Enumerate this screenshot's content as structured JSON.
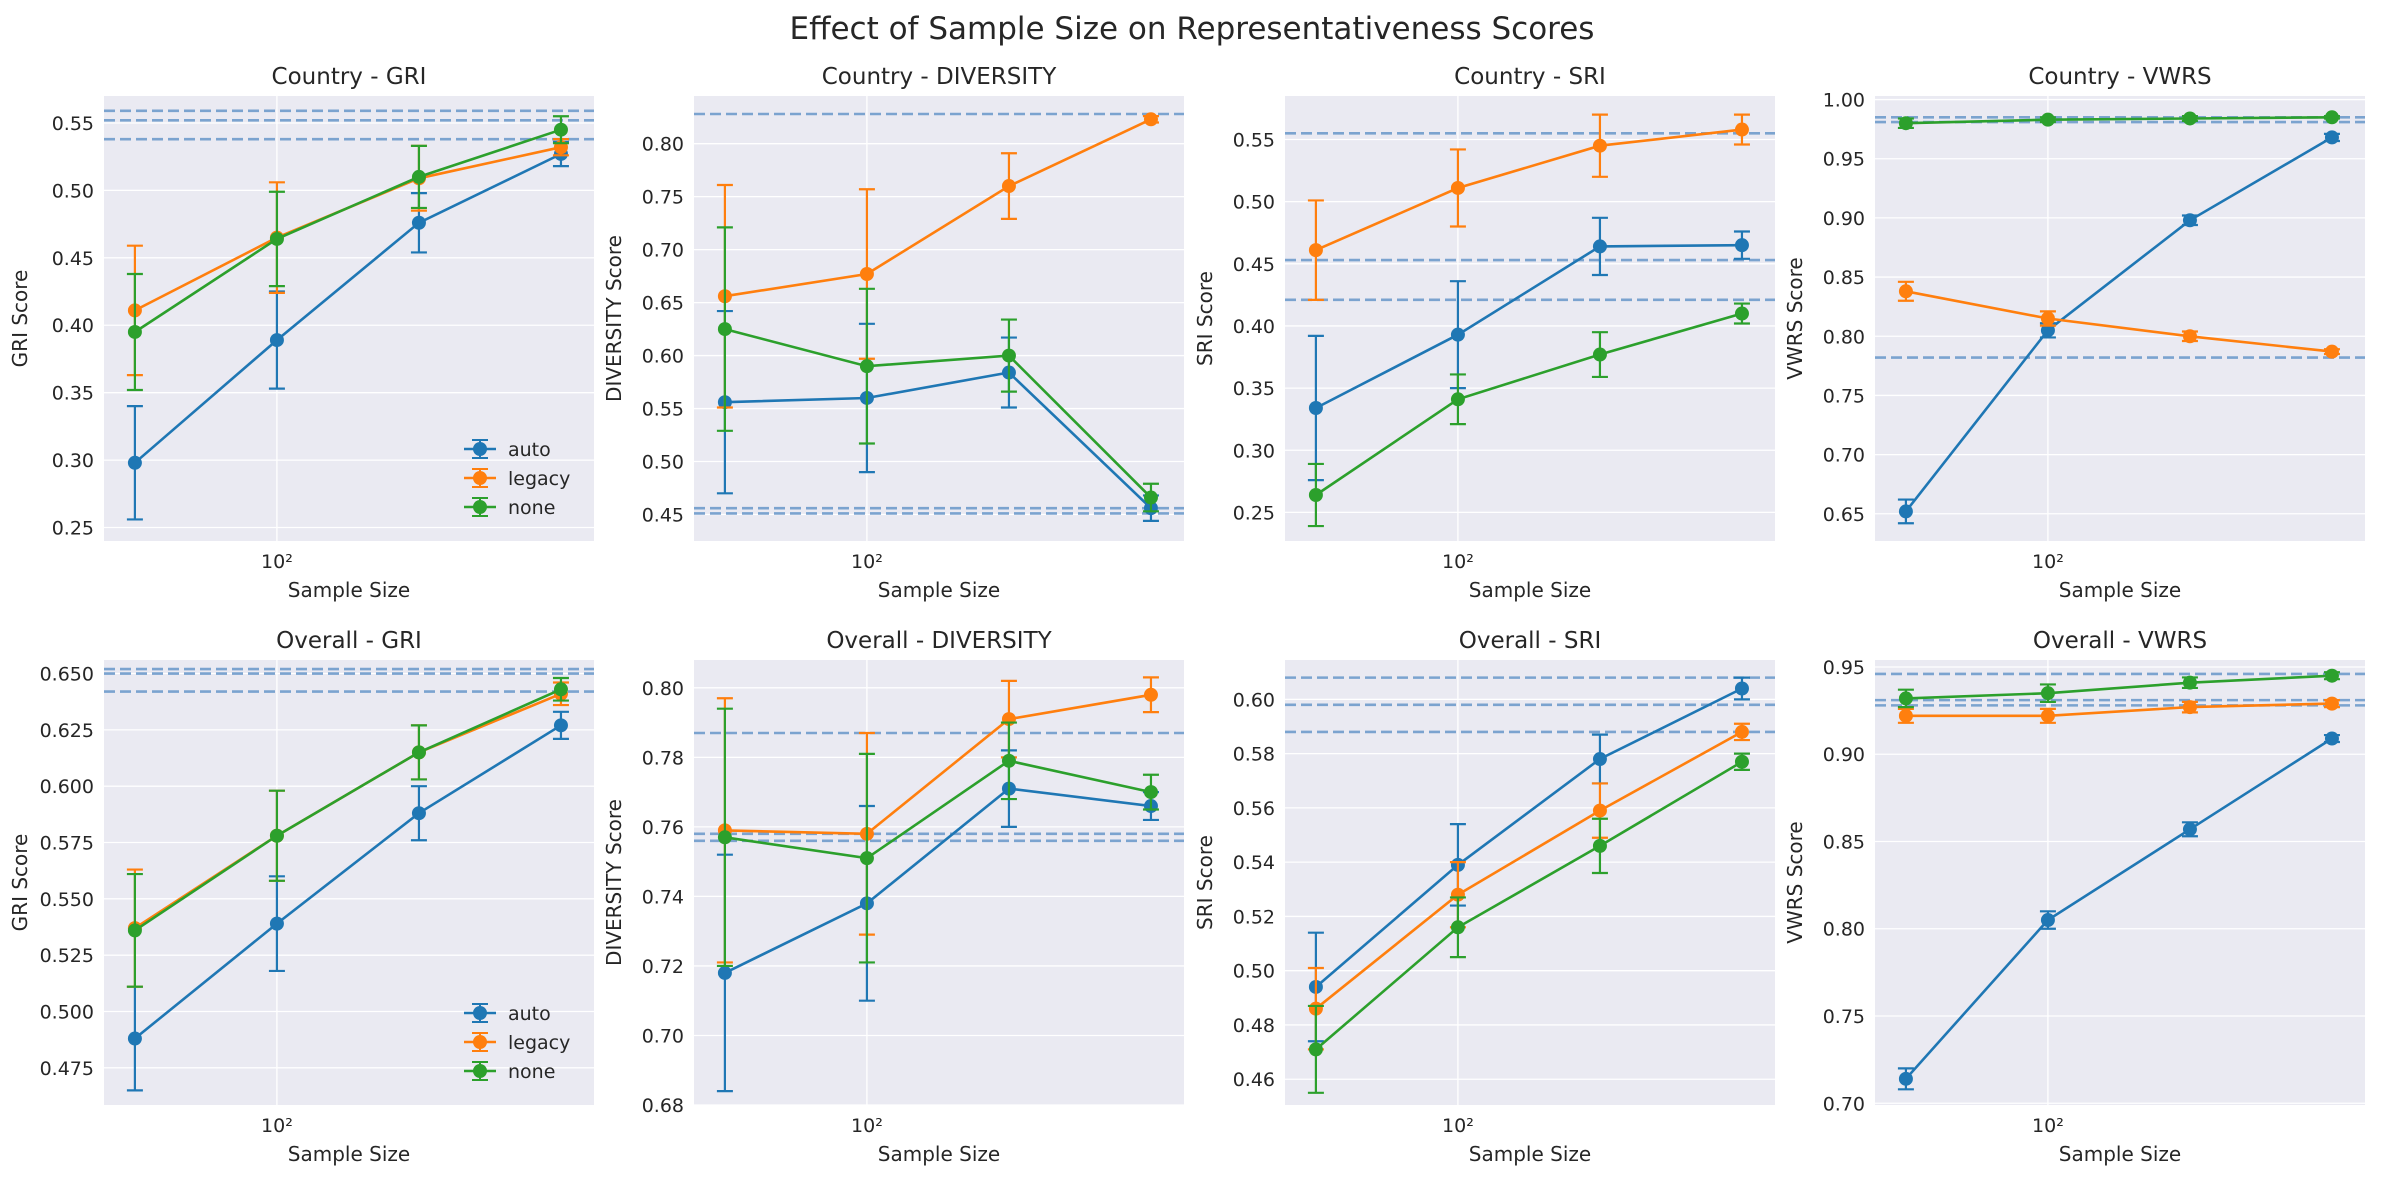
{
  "title": "Effect of Sample Size on Representativeness Scores",
  "colors": {
    "auto": "#1f77b4",
    "legacy": "#ff7f0e",
    "none": "#2ca02c",
    "refline": "#7ba3cf",
    "axes_bg": "#eaeaf2",
    "grid": "#ffffff"
  },
  "chart_data": [
    {
      "type": "line",
      "title": "Country - GRI",
      "xlabel": "Sample Size",
      "ylabel": "GRI Score",
      "x": [
        50,
        100,
        200,
        400
      ],
      "xscale": "log",
      "xlim": [
        43,
        470
      ],
      "xticks": [
        100
      ],
      "xtick_labels": [
        "10²"
      ],
      "ylim": [
        0.24,
        0.57
      ],
      "yticks": [
        0.25,
        0.3,
        0.35,
        0.4,
        0.45,
        0.5,
        0.55
      ],
      "ytick_labels": [
        "0.25",
        "0.30",
        "0.35",
        "0.40",
        "0.45",
        "0.50",
        "0.55"
      ],
      "reference_lines": [
        0.559,
        0.552,
        0.538
      ],
      "legend": {
        "location": "lower-right",
        "entries": [
          "auto",
          "legacy",
          "none"
        ]
      },
      "series": [
        {
          "name": "auto",
          "values": [
            0.298,
            0.389,
            0.476,
            0.527
          ],
          "yerr": [
            0.042,
            0.036,
            0.022,
            0.009
          ]
        },
        {
          "name": "legacy",
          "values": [
            0.411,
            0.465,
            0.509,
            0.532
          ],
          "yerr": [
            0.048,
            0.041,
            0.024,
            0.006
          ]
        },
        {
          "name": "none",
          "values": [
            0.395,
            0.464,
            0.51,
            0.545
          ],
          "yerr": [
            0.043,
            0.035,
            0.023,
            0.01
          ]
        }
      ]
    },
    {
      "type": "line",
      "title": "Country - DIVERSITY",
      "xlabel": "Sample Size",
      "ylabel": "DIVERSITY Score",
      "x": [
        50,
        100,
        200,
        400
      ],
      "xscale": "log",
      "xlim": [
        43,
        470
      ],
      "xticks": [
        100
      ],
      "xtick_labels": [
        "10²"
      ],
      "ylim": [
        0.425,
        0.845
      ],
      "yticks": [
        0.45,
        0.5,
        0.55,
        0.6,
        0.65,
        0.7,
        0.75,
        0.8
      ],
      "ytick_labels": [
        "0.45",
        "0.50",
        "0.55",
        "0.60",
        "0.65",
        "0.70",
        "0.75",
        "0.80"
      ],
      "reference_lines": [
        0.828,
        0.456,
        0.451
      ],
      "series": [
        {
          "name": "auto",
          "values": [
            0.556,
            0.56,
            0.584,
            0.456
          ],
          "yerr": [
            0.086,
            0.07,
            0.033,
            0.012
          ]
        },
        {
          "name": "legacy",
          "values": [
            0.656,
            0.677,
            0.76,
            0.823
          ],
          "yerr": [
            0.105,
            0.08,
            0.031,
            0.003
          ]
        },
        {
          "name": "none",
          "values": [
            0.625,
            0.59,
            0.6,
            0.466
          ],
          "yerr": [
            0.096,
            0.073,
            0.034,
            0.013
          ]
        }
      ]
    },
    {
      "type": "line",
      "title": "Country - SRI",
      "xlabel": "Sample Size",
      "ylabel": "SRI Score",
      "x": [
        50,
        100,
        200,
        400
      ],
      "xscale": "log",
      "xlim": [
        43,
        470
      ],
      "xticks": [
        100
      ],
      "xtick_labels": [
        "10²"
      ],
      "ylim": [
        0.227,
        0.585
      ],
      "yticks": [
        0.25,
        0.3,
        0.35,
        0.4,
        0.45,
        0.5,
        0.55
      ],
      "ytick_labels": [
        "0.25",
        "0.30",
        "0.35",
        "0.40",
        "0.45",
        "0.50",
        "0.55"
      ],
      "reference_lines": [
        0.555,
        0.453,
        0.421
      ],
      "series": [
        {
          "name": "auto",
          "values": [
            0.334,
            0.393,
            0.464,
            0.465
          ],
          "yerr": [
            0.058,
            0.043,
            0.023,
            0.011
          ]
        },
        {
          "name": "legacy",
          "values": [
            0.461,
            0.511,
            0.545,
            0.558
          ],
          "yerr": [
            0.04,
            0.031,
            0.025,
            0.012
          ]
        },
        {
          "name": "none",
          "values": [
            0.264,
            0.341,
            0.377,
            0.41
          ],
          "yerr": [
            0.025,
            0.02,
            0.018,
            0.008
          ]
        }
      ]
    },
    {
      "type": "line",
      "title": "Country - VWRS",
      "xlabel": "Sample Size",
      "ylabel": "VWRS Score",
      "x": [
        50,
        100,
        200,
        400
      ],
      "xscale": "log",
      "xlim": [
        43,
        470
      ],
      "xticks": [
        100
      ],
      "xtick_labels": [
        "10²"
      ],
      "ylim": [
        0.627,
        1.003
      ],
      "yticks": [
        0.65,
        0.7,
        0.75,
        0.8,
        0.85,
        0.9,
        0.95,
        1.0
      ],
      "ytick_labels": [
        "0.65",
        "0.70",
        "0.75",
        "0.80",
        "0.85",
        "0.90",
        "0.95",
        "1.00"
      ],
      "reference_lines": [
        0.985,
        0.981,
        0.782
      ],
      "series": [
        {
          "name": "auto",
          "values": [
            0.652,
            0.805,
            0.898,
            0.968
          ],
          "yerr": [
            0.01,
            0.006,
            0.004,
            0.003
          ]
        },
        {
          "name": "legacy",
          "values": [
            0.838,
            0.815,
            0.8,
            0.787
          ],
          "yerr": [
            0.008,
            0.006,
            0.004,
            0.002
          ]
        },
        {
          "name": "none",
          "values": [
            0.98,
            0.983,
            0.984,
            0.985
          ],
          "yerr": [
            0.004,
            0.002,
            0.002,
            0.001
          ]
        }
      ]
    },
    {
      "type": "line",
      "title": "Overall - GRI",
      "xlabel": "Sample Size",
      "ylabel": "GRI Score",
      "x": [
        50,
        100,
        200,
        400
      ],
      "xscale": "log",
      "xlim": [
        43,
        470
      ],
      "xticks": [
        100
      ],
      "xtick_labels": [
        "10²"
      ],
      "ylim": [
        0.4585,
        0.656
      ],
      "yticks": [
        0.475,
        0.5,
        0.525,
        0.55,
        0.575,
        0.6,
        0.625,
        0.65
      ],
      "ytick_labels": [
        "0.475",
        "0.500",
        "0.525",
        "0.550",
        "0.575",
        "0.600",
        "0.625",
        "0.650"
      ],
      "reference_lines": [
        0.652,
        0.65,
        0.642
      ],
      "legend": {
        "location": "lower-right",
        "entries": [
          "auto",
          "legacy",
          "none"
        ]
      },
      "series": [
        {
          "name": "auto",
          "values": [
            0.488,
            0.539,
            0.588,
            0.627
          ],
          "yerr": [
            0.023,
            0.021,
            0.012,
            0.006
          ]
        },
        {
          "name": "legacy",
          "values": [
            0.537,
            0.578,
            0.615,
            0.641
          ],
          "yerr": [
            0.026,
            0.02,
            0.012,
            0.005
          ]
        },
        {
          "name": "none",
          "values": [
            0.536,
            0.578,
            0.615,
            0.643
          ],
          "yerr": [
            0.025,
            0.02,
            0.012,
            0.005
          ]
        }
      ]
    },
    {
      "type": "line",
      "title": "Overall - DIVERSITY",
      "xlabel": "Sample Size",
      "ylabel": "DIVERSITY Score",
      "x": [
        50,
        100,
        200,
        400
      ],
      "xscale": "log",
      "xlim": [
        43,
        470
      ],
      "xticks": [
        100
      ],
      "xtick_labels": [
        "10²"
      ],
      "ylim": [
        0.68,
        0.808
      ],
      "yticks": [
        0.68,
        0.7,
        0.72,
        0.74,
        0.76,
        0.78,
        0.8
      ],
      "ytick_labels": [
        "0.68",
        "0.70",
        "0.72",
        "0.74",
        "0.76",
        "0.78",
        "0.80"
      ],
      "reference_lines": [
        0.787,
        0.758,
        0.756
      ],
      "series": [
        {
          "name": "auto",
          "values": [
            0.718,
            0.738,
            0.771,
            0.766
          ],
          "yerr": [
            0.034,
            0.028,
            0.011,
            0.004
          ]
        },
        {
          "name": "legacy",
          "values": [
            0.759,
            0.758,
            0.791,
            0.798
          ],
          "yerr": [
            0.038,
            0.029,
            0.011,
            0.005
          ]
        },
        {
          "name": "none",
          "values": [
            0.757,
            0.751,
            0.779,
            0.77
          ],
          "yerr": [
            0.037,
            0.03,
            0.011,
            0.005
          ]
        }
      ]
    },
    {
      "type": "line",
      "title": "Overall - SRI",
      "xlabel": "Sample Size",
      "ylabel": "SRI Score",
      "x": [
        50,
        100,
        200,
        400
      ],
      "xscale": "log",
      "xlim": [
        43,
        470
      ],
      "xticks": [
        100
      ],
      "xtick_labels": [
        "10²"
      ],
      "ylim": [
        0.4505,
        0.6145
      ],
      "yticks": [
        0.46,
        0.48,
        0.5,
        0.52,
        0.54,
        0.56,
        0.58,
        0.6
      ],
      "ytick_labels": [
        "0.46",
        "0.48",
        "0.50",
        "0.52",
        "0.54",
        "0.56",
        "0.58",
        "0.60"
      ],
      "reference_lines": [
        0.608,
        0.598,
        0.588
      ],
      "series": [
        {
          "name": "auto",
          "values": [
            0.494,
            0.539,
            0.578,
            0.604
          ],
          "yerr": [
            0.02,
            0.015,
            0.009,
            0.004
          ]
        },
        {
          "name": "legacy",
          "values": [
            0.486,
            0.528,
            0.559,
            0.588
          ],
          "yerr": [
            0.015,
            0.012,
            0.01,
            0.003
          ]
        },
        {
          "name": "none",
          "values": [
            0.471,
            0.516,
            0.546,
            0.577
          ],
          "yerr": [
            0.016,
            0.011,
            0.01,
            0.003
          ]
        }
      ]
    },
    {
      "type": "line",
      "title": "Overall - VWRS",
      "xlabel": "Sample Size",
      "ylabel": "VWRS Score",
      "x": [
        50,
        100,
        200,
        400
      ],
      "xscale": "log",
      "xlim": [
        43,
        470
      ],
      "xticks": [
        100
      ],
      "xtick_labels": [
        "10²"
      ],
      "ylim": [
        0.699,
        0.954
      ],
      "yticks": [
        0.7,
        0.75,
        0.8,
        0.85,
        0.9,
        0.95
      ],
      "ytick_labels": [
        "0.70",
        "0.75",
        "0.80",
        "0.85",
        "0.90",
        "0.95"
      ],
      "reference_lines": [
        0.946,
        0.931,
        0.928
      ],
      "series": [
        {
          "name": "auto",
          "values": [
            0.714,
            0.805,
            0.857,
            0.909
          ],
          "yerr": [
            0.006,
            0.005,
            0.004,
            0.002
          ]
        },
        {
          "name": "legacy",
          "values": [
            0.922,
            0.922,
            0.927,
            0.929
          ],
          "yerr": [
            0.004,
            0.004,
            0.003,
            0.002
          ]
        },
        {
          "name": "none",
          "values": [
            0.932,
            0.935,
            0.941,
            0.945
          ],
          "yerr": [
            0.005,
            0.005,
            0.003,
            0.002
          ]
        }
      ]
    }
  ]
}
